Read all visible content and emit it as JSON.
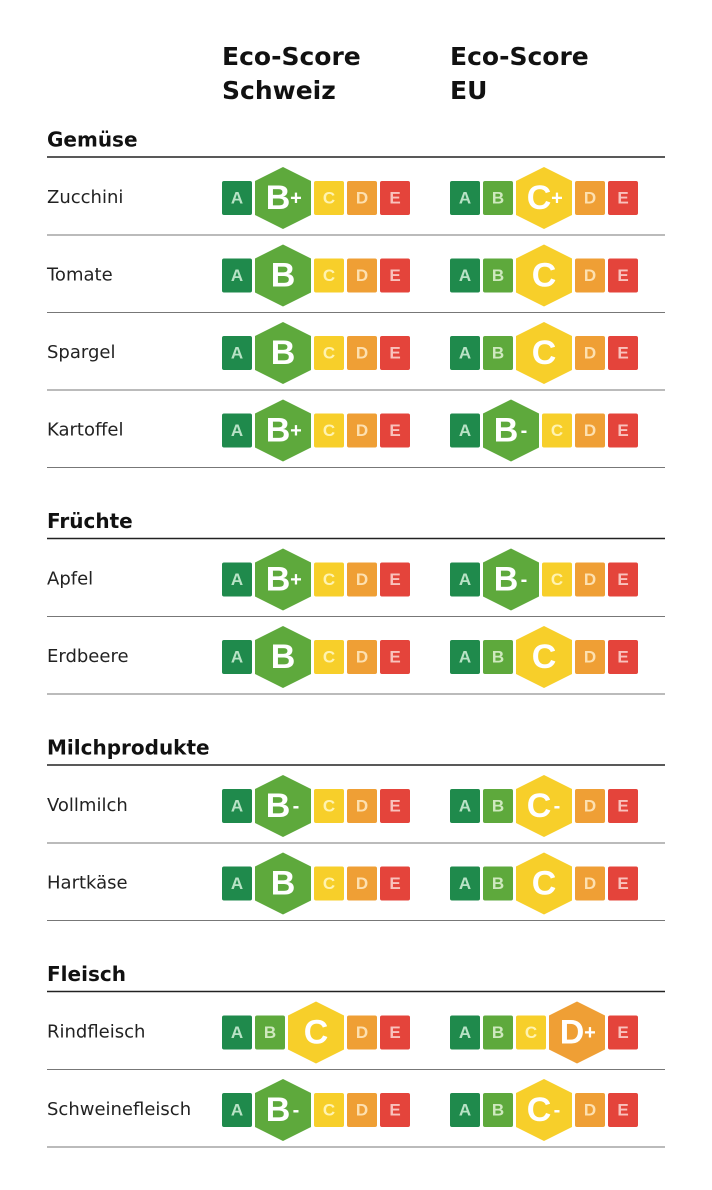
{
  "header": {
    "columns": [
      [
        "Eco-Score",
        "Schweiz"
      ],
      [
        "Eco-Score",
        "EU"
      ]
    ]
  },
  "scale": [
    "A",
    "B",
    "C",
    "D",
    "E"
  ],
  "sections": [
    {
      "title": "Gemüse",
      "rows": [
        {
          "name": "Zucchini",
          "scores": [
            {
              "grade": "B",
              "mod": "+"
            },
            {
              "grade": "C",
              "mod": "+"
            }
          ]
        },
        {
          "name": "Tomate",
          "scores": [
            {
              "grade": "B"
            },
            {
              "grade": "C"
            }
          ]
        },
        {
          "name": "Spargel",
          "scores": [
            {
              "grade": "B"
            },
            {
              "grade": "C"
            }
          ]
        },
        {
          "name": "Kartoffel",
          "scores": [
            {
              "grade": "B",
              "mod": "+"
            },
            {
              "grade": "B",
              "mod": "-"
            }
          ]
        }
      ]
    },
    {
      "title": "Früchte",
      "rows": [
        {
          "name": "Apfel",
          "scores": [
            {
              "grade": "B",
              "mod": "+"
            },
            {
              "grade": "B",
              "mod": "-"
            }
          ]
        },
        {
          "name": "Erdbeere",
          "scores": [
            {
              "grade": "B"
            },
            {
              "grade": "C"
            }
          ]
        }
      ]
    },
    {
      "title": "Milchprodukte",
      "rows": [
        {
          "name": "Vollmilch",
          "scores": [
            {
              "grade": "B",
              "mod": "-"
            },
            {
              "grade": "C",
              "mod": "-"
            }
          ]
        },
        {
          "name": "Hartkäse",
          "scores": [
            {
              "grade": "B"
            },
            {
              "grade": "C"
            }
          ]
        }
      ]
    },
    {
      "title": "Fleisch",
      "rows": [
        {
          "name": "Rindfleisch",
          "scores": [
            {
              "grade": "C"
            },
            {
              "grade": "D",
              "mod": "+"
            }
          ]
        },
        {
          "name": "Schweinefleisch",
          "scores": [
            {
              "grade": "B",
              "mod": "-"
            },
            {
              "grade": "C",
              "mod": "-"
            }
          ]
        }
      ]
    }
  ]
}
